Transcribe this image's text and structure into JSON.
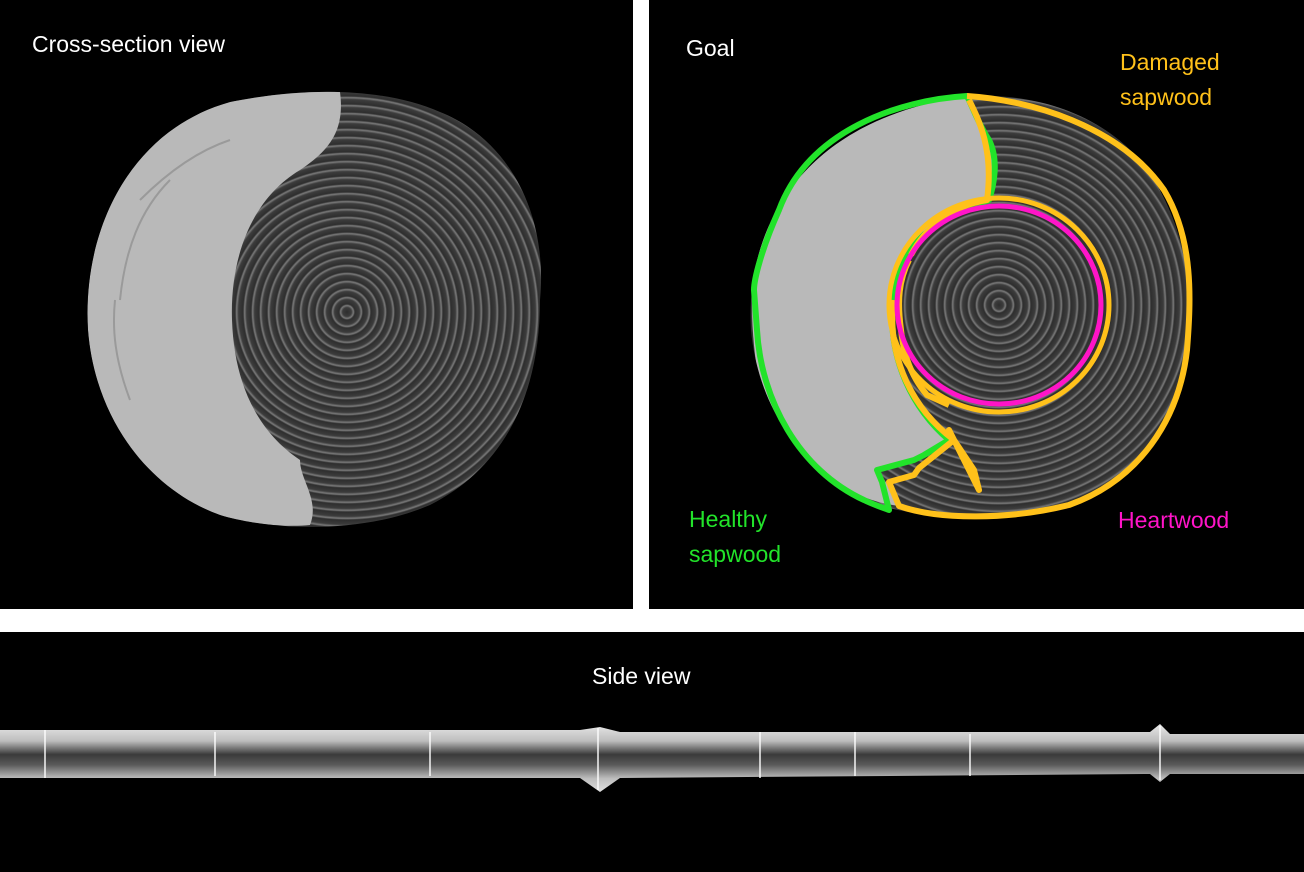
{
  "left_panel": {
    "title": "Cross-section view"
  },
  "right_panel": {
    "title": "Goal",
    "damaged_label_line1": "Damaged",
    "damaged_label_line2": "sapwood",
    "healthy_label_line1": "Healthy",
    "healthy_label_line2": "sapwood",
    "heartwood_label": "Heartwood"
  },
  "bottom_panel": {
    "title": "Side view"
  },
  "colors": {
    "healthy": "#22e32a",
    "damaged": "#ffc11a",
    "heartwood": "#ff14c8"
  }
}
